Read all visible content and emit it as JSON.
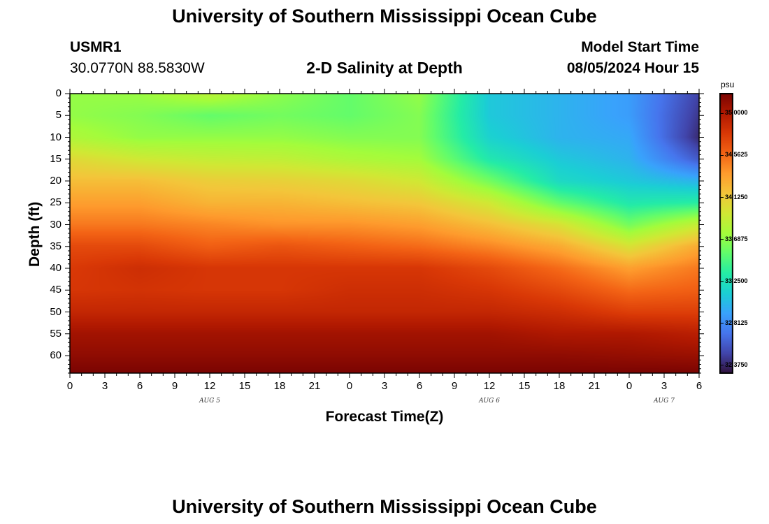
{
  "page_title_top": "University of Southern Mississippi Ocean Cube",
  "page_title_bottom": "University of Southern Mississippi Ocean Cube",
  "station": {
    "id": "USMR1",
    "coords": "30.0770N  88.5830W"
  },
  "model_start": {
    "label": "Model Start Time",
    "value": "08/05/2024 Hour 15"
  },
  "chart_data": {
    "type": "heatmap",
    "title": "2-D Salinity at Depth",
    "xlabel": "Forecast Time(Z)",
    "ylabel": "Depth (ft)",
    "x_tick_labels": [
      "0",
      "3",
      "6",
      "9",
      "12",
      "15",
      "18",
      "21",
      "0",
      "3",
      "6",
      "9",
      "12",
      "15",
      "18",
      "21",
      "0",
      "3",
      "6"
    ],
    "x_range_hours": [
      0,
      54
    ],
    "day_labels": [
      {
        "text": "AUG 5",
        "hour": 12
      },
      {
        "text": "AUG 6",
        "hour": 36
      },
      {
        "text": "AUG 7",
        "hour": 51
      }
    ],
    "y_tick_labels": [
      "0",
      "5",
      "10",
      "15",
      "20",
      "25",
      "30",
      "35",
      "40",
      "45",
      "50",
      "55",
      "60"
    ],
    "y_range_ft": [
      0,
      64
    ],
    "colorbar": {
      "unit": "psu",
      "range": [
        32.3,
        35.2
      ],
      "tick_values": [
        35.0,
        34.5625,
        34.125,
        33.6875,
        33.25,
        32.8125,
        32.375
      ],
      "tick_labels": [
        "35.0000",
        "34.5625",
        "34.1250",
        "33.6875",
        "33.2500",
        "32.8125",
        "32.3750"
      ]
    },
    "grid_x_hours": [
      0,
      6,
      12,
      18,
      24,
      30,
      36,
      42,
      48,
      54
    ],
    "grid_depth_ft": [
      0,
      5,
      10,
      15,
      20,
      25,
      30,
      35,
      40,
      45,
      50,
      55,
      60,
      64
    ],
    "salinity_psu": [
      [
        33.7,
        33.72,
        33.85,
        33.68,
        33.55,
        33.7,
        33.1,
        33.0,
        32.9,
        32.5
      ],
      [
        33.7,
        33.65,
        33.55,
        33.6,
        33.55,
        33.65,
        33.1,
        33.0,
        32.9,
        32.45
      ],
      [
        33.8,
        33.7,
        33.7,
        33.7,
        33.65,
        33.65,
        33.15,
        33.0,
        32.95,
        32.4
      ],
      [
        34.05,
        33.95,
        33.9,
        33.88,
        33.8,
        33.75,
        33.3,
        33.1,
        33.0,
        32.6
      ],
      [
        34.2,
        34.2,
        34.12,
        34.1,
        34.05,
        33.95,
        33.6,
        33.2,
        33.1,
        33.0
      ],
      [
        34.35,
        34.35,
        34.25,
        34.25,
        34.2,
        34.15,
        33.95,
        33.55,
        33.3,
        33.35
      ],
      [
        34.5,
        34.5,
        34.45,
        34.4,
        34.4,
        34.35,
        34.2,
        34.0,
        33.6,
        33.9
      ],
      [
        34.7,
        34.7,
        34.6,
        34.65,
        34.6,
        34.55,
        34.45,
        34.3,
        34.0,
        34.3
      ],
      [
        34.78,
        34.85,
        34.8,
        34.8,
        34.8,
        34.8,
        34.7,
        34.55,
        34.35,
        34.5
      ],
      [
        34.8,
        34.82,
        34.8,
        34.8,
        34.85,
        34.85,
        34.8,
        34.7,
        34.55,
        34.6
      ],
      [
        34.9,
        34.9,
        34.9,
        34.9,
        34.9,
        34.9,
        34.9,
        34.85,
        34.75,
        34.75
      ],
      [
        35.05,
        35.05,
        35.05,
        35.05,
        35.05,
        35.05,
        35.05,
        35.0,
        35.0,
        34.95
      ],
      [
        35.12,
        35.12,
        35.12,
        35.12,
        35.12,
        35.12,
        35.12,
        35.12,
        35.1,
        35.08
      ],
      [
        35.2,
        35.2,
        35.2,
        35.2,
        35.2,
        35.2,
        35.2,
        35.2,
        35.2,
        35.2
      ]
    ],
    "colormap": [
      "#30123b",
      "#4145ab",
      "#4675ed",
      "#39a2fc",
      "#1bcfd4",
      "#24eca6",
      "#61fc6c",
      "#a4fc3b",
      "#d1e834",
      "#f3c63a",
      "#fe9b2d",
      "#f36315",
      "#d93806",
      "#b11901",
      "#7a0402"
    ]
  }
}
